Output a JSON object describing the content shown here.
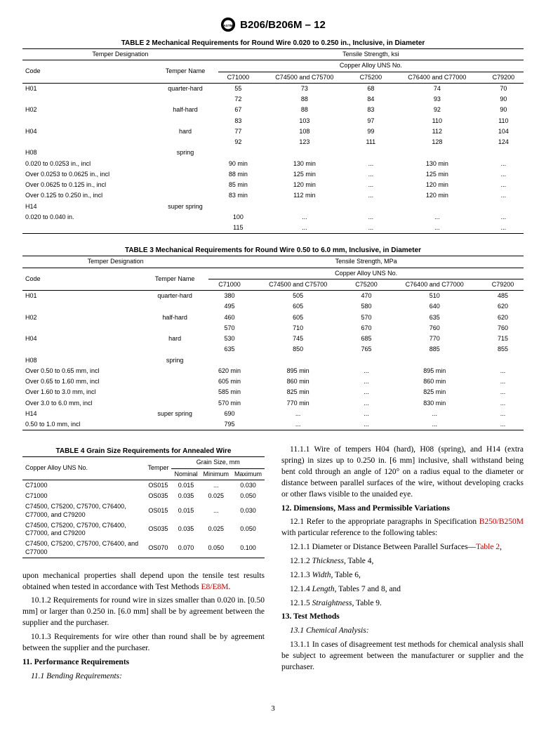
{
  "doc_header": "B206/B206M – 12",
  "table2": {
    "title": "TABLE 2 Mechanical Requirements for Round Wire 0.020 to 0.250 in., Inclusive, in Diameter",
    "temper_hdr": "Temper Designation",
    "tensile_hdr": "Tensile Strength, ksi",
    "alloy_hdr": "Copper Alloy UNS No.",
    "col_code": "Code",
    "col_name": "Temper Name",
    "alloys": [
      "C71000",
      "C74500 and C75700",
      "C75200",
      "C76400 and C77000",
      "C79200"
    ],
    "rows": [
      {
        "code": "H01",
        "name": "quarter-hard",
        "v": [
          "55",
          "73",
          "68",
          "74",
          "70"
        ]
      },
      {
        "code": "",
        "name": "",
        "v": [
          "72",
          "88",
          "84",
          "93",
          "90"
        ]
      },
      {
        "code": "H02",
        "name": "half-hard",
        "v": [
          "67",
          "88",
          "83",
          "92",
          "90"
        ]
      },
      {
        "code": "",
        "name": "",
        "v": [
          "83",
          "103",
          "97",
          "110",
          "110"
        ]
      },
      {
        "code": "H04",
        "name": "hard",
        "v": [
          "77",
          "108",
          "99",
          "112",
          "104"
        ]
      },
      {
        "code": "",
        "name": "",
        "v": [
          "92",
          "123",
          "111",
          "128",
          "124"
        ]
      },
      {
        "code": "H08",
        "name": "spring",
        "v": [
          "",
          "",
          "",
          "",
          ""
        ]
      },
      {
        "code": "0.020 to 0.0253 in., incl",
        "name": "",
        "v": [
          "90 min",
          "130 min",
          "...",
          "130 min",
          "..."
        ]
      },
      {
        "code": "Over 0.0253 to 0.0625 in., incl",
        "name": "",
        "v": [
          "88 min",
          "125 min",
          "...",
          "125 min",
          "..."
        ]
      },
      {
        "code": "Over 0.0625 to 0.125 in., incl",
        "name": "",
        "v": [
          "85 min",
          "120 min",
          "...",
          "120 min",
          "..."
        ]
      },
      {
        "code": "Over 0.125 to 0.250 in., incl",
        "name": "",
        "v": [
          "83 min",
          "112 min",
          "...",
          "120 min",
          "..."
        ]
      },
      {
        "code": "H14",
        "name": "super spring",
        "v": [
          "",
          "",
          "",
          "",
          ""
        ]
      },
      {
        "code": "0.020 to 0.040 in.",
        "name": "",
        "v": [
          "100",
          "...",
          "...",
          "...",
          "..."
        ]
      },
      {
        "code": "",
        "name": "",
        "v": [
          "115",
          "...",
          "...",
          "...",
          "..."
        ]
      }
    ]
  },
  "table3": {
    "title": "TABLE 3 Mechanical Requirements for Round Wire 0.50 to 6.0 mm, Inclusive, in Diameter",
    "temper_hdr": "Temper Designation",
    "tensile_hdr": "Tensile Strength, MPa",
    "alloy_hdr": "Copper Alloy UNS No.",
    "col_code": "Code",
    "col_name": "Temper Name",
    "alloys": [
      "C71000",
      "C74500 and C75700",
      "C75200",
      "C76400 and C77000",
      "C79200"
    ],
    "rows": [
      {
        "code": "H01",
        "name": "quarter-hard",
        "v": [
          "380",
          "505",
          "470",
          "510",
          "485"
        ]
      },
      {
        "code": "",
        "name": "",
        "v": [
          "495",
          "605",
          "580",
          "640",
          "620"
        ]
      },
      {
        "code": "H02",
        "name": "half-hard",
        "v": [
          "460",
          "605",
          "570",
          "635",
          "620"
        ]
      },
      {
        "code": "",
        "name": "",
        "v": [
          "570",
          "710",
          "670",
          "760",
          "760"
        ]
      },
      {
        "code": "H04",
        "name": "hard",
        "v": [
          "530",
          "745",
          "685",
          "770",
          "715"
        ]
      },
      {
        "code": "",
        "name": "",
        "v": [
          "635",
          "850",
          "765",
          "885",
          "855"
        ]
      },
      {
        "code": "H08",
        "name": "spring",
        "v": [
          "",
          "",
          "",
          "",
          ""
        ]
      },
      {
        "code": "Over 0.50 to 0.65 mm, incl",
        "name": "",
        "v": [
          "620 min",
          "895 min",
          "...",
          "895 min",
          "..."
        ]
      },
      {
        "code": "Over 0.65 to 1.60 mm, incl",
        "name": "",
        "v": [
          "605 min",
          "860 min",
          "...",
          "860 min",
          "..."
        ]
      },
      {
        "code": "Over 1.60 to 3.0 mm, incl",
        "name": "",
        "v": [
          "585 min",
          "825 min",
          "...",
          "825 min",
          "..."
        ]
      },
      {
        "code": "Over 3.0 to 6.0 mm, incl",
        "name": "",
        "v": [
          "570 min",
          "770 min",
          "...",
          "830 min",
          "..."
        ]
      },
      {
        "code": "H14",
        "name": "super spring",
        "v": [
          "690",
          "...",
          "...",
          "...",
          "..."
        ]
      },
      {
        "code": "0.50 to 1.0 mm, incl",
        "name": "",
        "v": [
          "795",
          "...",
          "...",
          "...",
          "..."
        ]
      }
    ]
  },
  "table4": {
    "title": "TABLE 4 Grain Size Requirements for Annealed Wire",
    "h_alloy": "Copper Alloy UNS No.",
    "h_temper": "Temper",
    "h_grain": "Grain Size, mm",
    "h_nom": "Nominal",
    "h_min": "Minimum",
    "h_max": "Maximum",
    "rows": [
      {
        "a": "C71000",
        "t": "OS015",
        "n": "0.015",
        "mi": "...",
        "mx": "0.030"
      },
      {
        "a": "C71000",
        "t": "OS035",
        "n": "0.035",
        "mi": "0.025",
        "mx": "0.050"
      },
      {
        "a": "C74500, C75200, C75700, C76400, C77000, and C79200",
        "t": "OS015",
        "n": "0.015",
        "mi": "...",
        "mx": "0.030"
      },
      {
        "a": "C74500, C75200, C75700, C76400, C77000, and C79200",
        "t": "OS035",
        "n": "0.035",
        "mi": "0.025",
        "mx": "0.050"
      },
      {
        "a": "C74500, C75200, C75700, C76400, and C77000",
        "t": "OS070",
        "n": "0.070",
        "mi": "0.050",
        "mx": "0.100"
      }
    ]
  },
  "left_body": {
    "p1a": "upon mechanical properties shall depend upon the tensile test results obtained when tested in accordance with Test Methods ",
    "p1_link": "E8/E8M",
    "p1b": ".",
    "p2": "10.1.2 Requirements for round wire in sizes smaller than 0.020 in. [0.50 mm] or larger than 0.250 in. [6.0 mm] shall be by agreement between the supplier and the purchaser.",
    "p3": "10.1.3 Requirements for wire other than round shall be by agreement between the supplier and the purchaser.",
    "s11": "11. Performance Requirements",
    "s11_1": "11.1 Bending Requirements:"
  },
  "right_body": {
    "p1": "11.1.1 Wire of tempers H04 (hard), H08 (spring), and H14 (extra spring) in sizes up to 0.250 in. [6 mm] inclusive, shall withstand being bent cold through an angle of 120° on a radius equal to the diameter or distance between parallel surfaces of the wire, without developing cracks or other flaws visible to the unaided eye.",
    "s12": "12. Dimensions, Mass and Permissible Variations",
    "s12_1a": "12.1 Refer to the appropriate paragraphs in Specification ",
    "s12_1_link": "B250/B250M",
    "s12_1b": " with particular reference to the following tables:",
    "s12_1_1a": "12.1.1 Diameter or Distance Between Parallel Surfaces—",
    "s12_1_1_link": "Table 2",
    "s12_1_1b": ",",
    "s12_1_2": "12.1.2 Thickness, Table 4,",
    "s12_1_3": "12.1.3 Width, Table 6,",
    "s12_1_4": "12.1.4 Length, Tables 7 and 8, and",
    "s12_1_5": "12.1.5 Straightness, Table 9.",
    "s13": "13. Test Methods",
    "s13_1": "13.1 Chemical Analysis:",
    "s13_1_1": "13.1.1 In cases of disagreement test methods for chemical analysis shall be subject to agreement between the manufacturer or supplier and the purchaser."
  },
  "page_num": "3"
}
